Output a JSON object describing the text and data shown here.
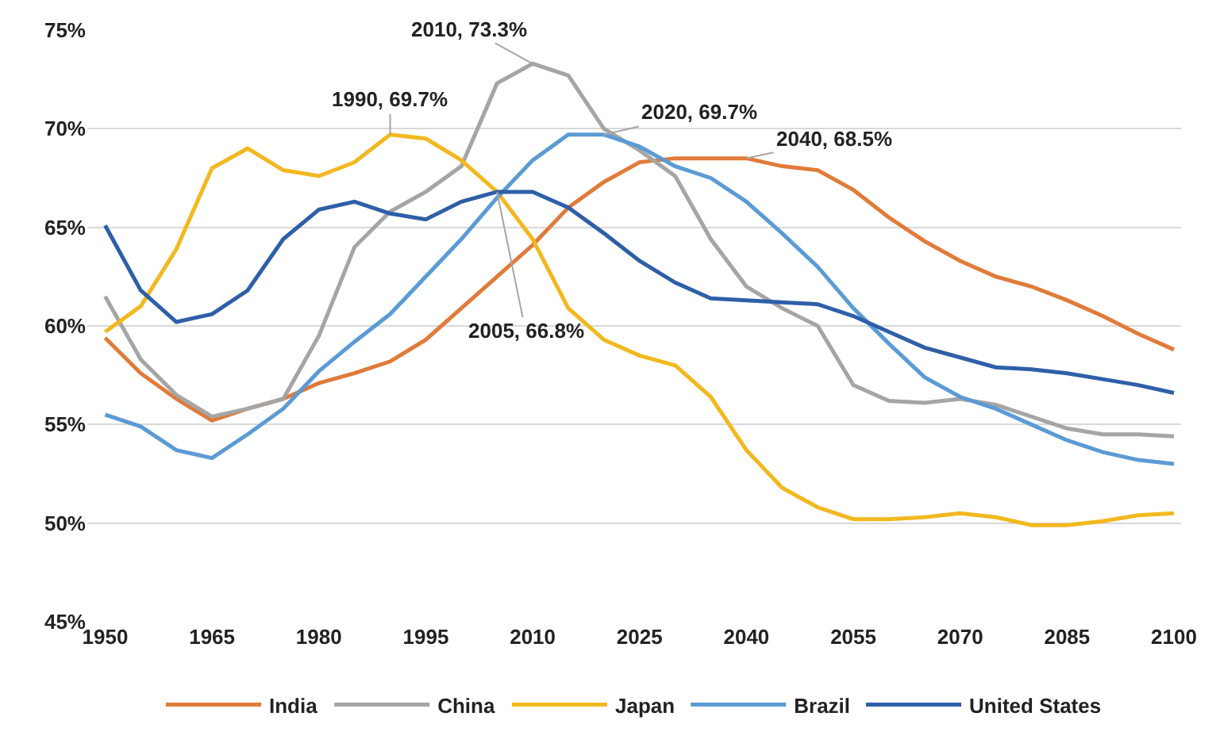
{
  "chart_data": {
    "type": "line",
    "x": [
      1950,
      1955,
      1960,
      1965,
      1970,
      1975,
      1980,
      1985,
      1990,
      1995,
      2000,
      2005,
      2010,
      2015,
      2020,
      2025,
      2030,
      2035,
      2040,
      2045,
      2050,
      2055,
      2060,
      2065,
      2070,
      2075,
      2080,
      2085,
      2090,
      2095,
      2100
    ],
    "series": [
      {
        "name": "India",
        "color": "#e07b39",
        "values": [
          59.4,
          57.6,
          56.3,
          55.2,
          55.8,
          56.3,
          57.1,
          57.6,
          58.2,
          59.3,
          60.9,
          62.5,
          64.1,
          66.0,
          67.3,
          68.3,
          68.5,
          68.5,
          68.5,
          68.1,
          67.9,
          66.9,
          65.5,
          64.3,
          63.3,
          62.5,
          62.0,
          61.3,
          60.5,
          59.6,
          58.8
        ]
      },
      {
        "name": "China",
        "color": "#a5a5a5",
        "values": [
          61.5,
          58.3,
          56.5,
          55.4,
          55.8,
          56.3,
          59.5,
          64.0,
          65.8,
          66.8,
          68.1,
          72.3,
          73.3,
          72.7,
          70.0,
          68.9,
          67.6,
          64.4,
          62.0,
          60.9,
          60.0,
          57.0,
          56.2,
          56.1,
          56.3,
          56.0,
          55.4,
          54.8,
          54.5,
          54.5,
          54.4
        ]
      },
      {
        "name": "Japan",
        "color": "#f2b81f",
        "values": [
          59.7,
          61.0,
          63.9,
          68.0,
          69.0,
          67.9,
          67.6,
          68.3,
          69.7,
          69.5,
          68.4,
          66.8,
          64.4,
          60.9,
          59.3,
          58.5,
          58.0,
          56.4,
          53.7,
          51.8,
          50.8,
          50.2,
          50.2,
          50.3,
          50.5,
          50.3,
          49.9,
          49.9,
          50.1,
          50.4,
          50.5
        ]
      },
      {
        "name": "Brazil",
        "color": "#5b9bd5",
        "values": [
          55.5,
          54.9,
          53.7,
          53.3,
          54.5,
          55.8,
          57.7,
          59.2,
          60.6,
          62.5,
          64.4,
          66.5,
          68.4,
          69.7,
          69.7,
          69.1,
          68.1,
          67.5,
          66.3,
          64.7,
          63.0,
          60.9,
          59.1,
          57.4,
          56.4,
          55.8,
          55.0,
          54.2,
          53.6,
          53.2,
          53.0
        ]
      },
      {
        "name": "United States",
        "color": "#2e5fa8",
        "values": [
          65.1,
          61.8,
          60.2,
          60.6,
          61.8,
          64.4,
          65.9,
          66.3,
          65.7,
          65.4,
          66.3,
          66.8,
          66.8,
          66.0,
          64.7,
          63.3,
          62.2,
          61.4,
          61.3,
          61.2,
          61.1,
          60.5,
          59.7,
          58.9,
          58.4,
          57.9,
          57.8,
          57.6,
          57.3,
          57.0,
          56.6
        ]
      }
    ],
    "annotations": [
      {
        "text": "1990, 69.7%",
        "x": 1990,
        "y": 69.7
      },
      {
        "text": "2010, 73.3%",
        "x": 2010,
        "y": 73.3
      },
      {
        "text": "2020, 69.7%",
        "x": 2020,
        "y": 69.7
      },
      {
        "text": "2040, 68.5%",
        "x": 2040,
        "y": 68.5
      },
      {
        "text": "2005, 66.8%",
        "x": 2005,
        "y": 66.8
      }
    ],
    "xlim": [
      1947.5,
      2101
    ],
    "xticks": [
      1950,
      1965,
      1980,
      1995,
      2010,
      2025,
      2040,
      2055,
      2070,
      2085,
      2100
    ],
    "ylim": [
      45,
      75
    ],
    "yticks": [
      {
        "value": 45,
        "label": "45%"
      },
      {
        "value": 50,
        "label": "50%"
      },
      {
        "value": 55,
        "label": "55%"
      },
      {
        "value": 60,
        "label": "60%"
      },
      {
        "value": 65,
        "label": "65%"
      },
      {
        "value": 70,
        "label": "70%"
      },
      {
        "value": 75,
        "label": "75%"
      }
    ],
    "grid": "y",
    "legend": "bottom",
    "marker": "none",
    "line_style": "solid"
  }
}
